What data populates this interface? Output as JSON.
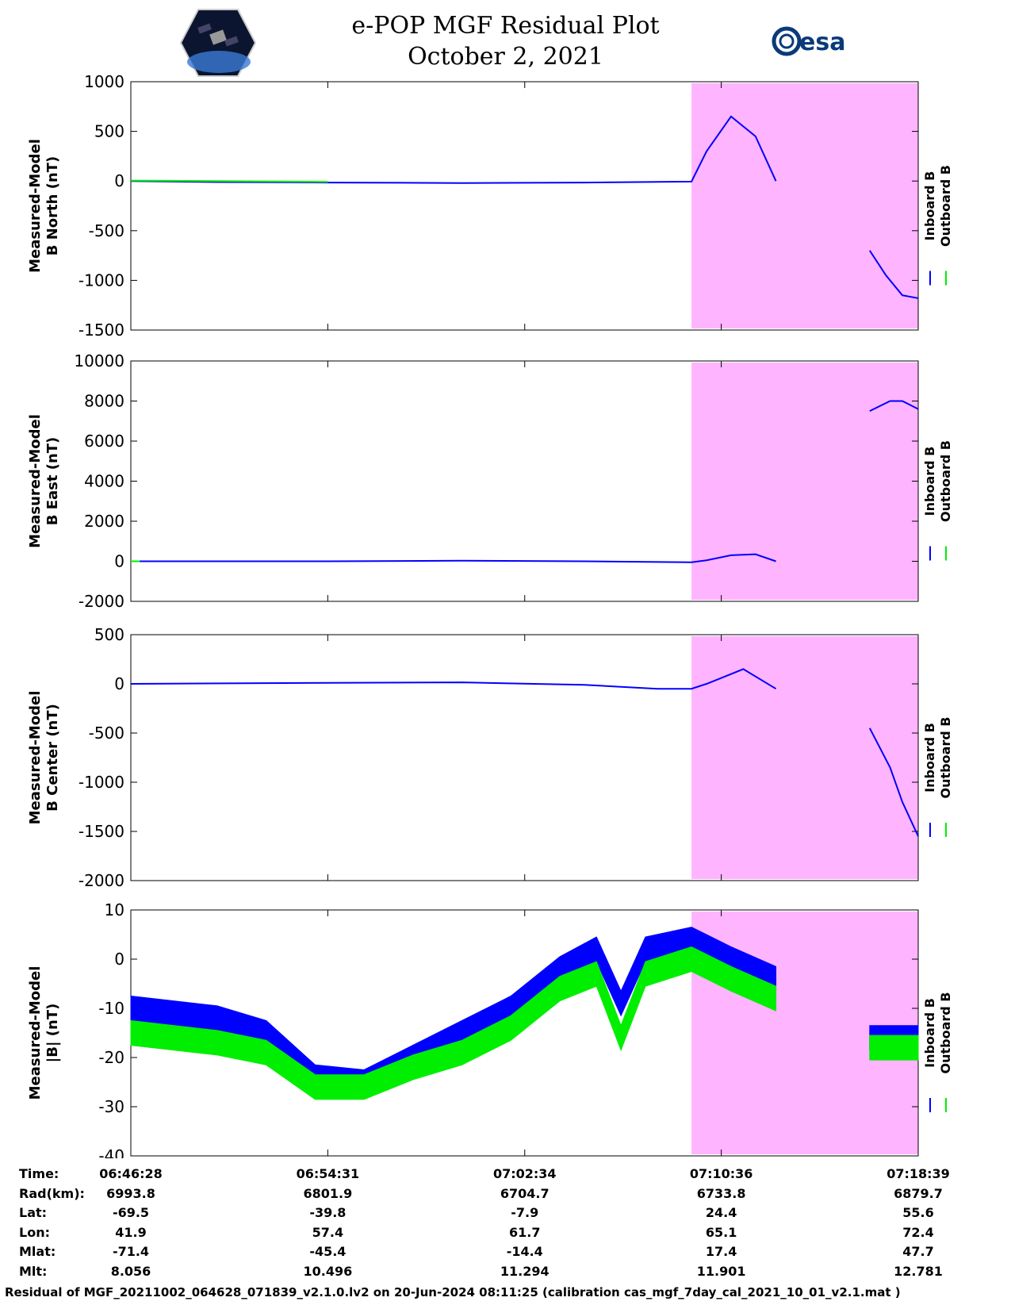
{
  "header": {
    "title_line1": "e-POP MGF Residual Plot",
    "title_line2": "October 2, 2021",
    "left_logo": "cassiope-logo",
    "right_logo_text": "esa"
  },
  "colors": {
    "inboard": "#0000ff",
    "outboard": "#00ee00",
    "highlight": "#ffb4ff"
  },
  "legend": {
    "inboard": "Inboard B",
    "outboard": "Outboard B"
  },
  "chart_data": [
    {
      "type": "line",
      "ylabel_line1": "Measured-Model",
      "ylabel_line2": "B North (nT)",
      "ylim": [
        -1500,
        1000
      ],
      "yticks": [
        -1500,
        -1000,
        -500,
        0,
        500,
        1000
      ],
      "shaded_span": [
        "07:09:23",
        "07:18:39"
      ],
      "series": [
        {
          "name": "Inboard B",
          "segments": [
            [
              [
                "06:46:28",
                0
              ],
              [
                "06:50:00",
                -10
              ],
              [
                "06:54:31",
                -15
              ],
              [
                "07:00:00",
                -20
              ],
              [
                "07:05:00",
                -15
              ],
              [
                "07:09:23",
                -5
              ],
              [
                "07:10:00",
                300
              ],
              [
                "07:11:00",
                650
              ],
              [
                "07:12:00",
                450
              ],
              [
                "07:12:50",
                0
              ]
            ],
            [
              [
                "07:16:40",
                -700
              ],
              [
                "07:17:20",
                -950
              ],
              [
                "07:18:00",
                -1150
              ],
              [
                "07:18:39",
                -1180
              ]
            ]
          ]
        },
        {
          "name": "Outboard B",
          "segments": [
            [
              [
                "06:46:28",
                5
              ],
              [
                "06:50:00",
                0
              ],
              [
                "06:54:31",
                -8
              ]
            ]
          ]
        }
      ]
    },
    {
      "type": "line",
      "ylabel_line1": "Measured-Model",
      "ylabel_line2": "B East (nT)",
      "ylim": [
        -2000,
        10000
      ],
      "yticks": [
        -2000,
        0,
        2000,
        4000,
        6000,
        8000,
        10000
      ],
      "shaded_span": [
        "07:09:23",
        "07:18:39"
      ],
      "series": [
        {
          "name": "Inboard B",
          "segments": [
            [
              [
                "06:46:28",
                0
              ],
              [
                "06:54:31",
                0
              ],
              [
                "07:00:00",
                30
              ],
              [
                "07:05:00",
                0
              ],
              [
                "07:09:23",
                -50
              ],
              [
                "07:10:00",
                50
              ],
              [
                "07:11:00",
                300
              ],
              [
                "07:12:00",
                350
              ],
              [
                "07:12:50",
                0
              ]
            ],
            [
              [
                "07:16:40",
                7500
              ],
              [
                "07:17:30",
                8000
              ],
              [
                "07:18:00",
                8000
              ],
              [
                "07:18:39",
                7600
              ]
            ]
          ]
        },
        {
          "name": "Outboard B",
          "segments": [
            [
              [
                "06:46:28",
                0
              ],
              [
                "06:46:50",
                0
              ]
            ]
          ]
        }
      ]
    },
    {
      "type": "line",
      "ylabel_line1": "Measured-Model",
      "ylabel_line2": "B Center (nT)",
      "ylim": [
        -2000,
        500
      ],
      "yticks": [
        -2000,
        -1500,
        -1000,
        -500,
        0,
        500
      ],
      "shaded_span": [
        "07:09:23",
        "07:18:39"
      ],
      "series": [
        {
          "name": "Inboard B",
          "segments": [
            [
              [
                "06:46:28",
                0
              ],
              [
                "06:54:31",
                10
              ],
              [
                "07:00:00",
                15
              ],
              [
                "07:05:00",
                -10
              ],
              [
                "07:08:00",
                -50
              ],
              [
                "07:09:23",
                -50
              ],
              [
                "07:10:00",
                0
              ],
              [
                "07:11:30",
                150
              ],
              [
                "07:12:50",
                -50
              ]
            ],
            [
              [
                "07:16:40",
                -450
              ],
              [
                "07:17:30",
                -850
              ],
              [
                "07:18:00",
                -1200
              ],
              [
                "07:18:39",
                -1550
              ]
            ]
          ]
        }
      ]
    },
    {
      "type": "line",
      "ylabel_line1": "Measured-Model",
      "ylabel_line2": "|B| (nT)",
      "ylim": [
        -40,
        10
      ],
      "yticks": [
        -40,
        -30,
        -20,
        -10,
        0,
        10
      ],
      "shaded_span": [
        "07:09:23",
        "07:18:39"
      ],
      "series": [
        {
          "name": "Inboard B",
          "band": true,
          "segments": [
            [
              [
                "06:46:28",
                -10
              ],
              [
                "06:50:00",
                -12
              ],
              [
                "06:52:00",
                -15
              ],
              [
                "06:54:00",
                -24
              ],
              [
                "06:56:00",
                -25
              ],
              [
                "06:58:00",
                -20
              ],
              [
                "07:00:00",
                -15
              ],
              [
                "07:02:00",
                -10
              ],
              [
                "07:04:00",
                -2
              ],
              [
                "07:05:30",
                2
              ],
              [
                "07:06:30",
                -9
              ],
              [
                "07:07:30",
                2
              ],
              [
                "07:09:23",
                4
              ],
              [
                "07:11:00",
                0
              ],
              [
                "07:12:50",
                -4
              ]
            ],
            [
              [
                "07:16:40",
                -16
              ],
              [
                "07:18:39",
                -16
              ]
            ]
          ]
        },
        {
          "name": "Outboard B",
          "band": true,
          "segments": [
            [
              [
                "06:46:28",
                -15
              ],
              [
                "06:50:00",
                -17
              ],
              [
                "06:52:00",
                -19
              ],
              [
                "06:54:00",
                -26
              ],
              [
                "06:56:00",
                -26
              ],
              [
                "06:58:00",
                -22
              ],
              [
                "07:00:00",
                -19
              ],
              [
                "07:02:00",
                -14
              ],
              [
                "07:04:00",
                -6
              ],
              [
                "07:05:30",
                -3
              ],
              [
                "07:06:30",
                -16
              ],
              [
                "07:07:30",
                -3
              ],
              [
                "07:09:23",
                0
              ],
              [
                "07:11:00",
                -4
              ],
              [
                "07:12:50",
                -8
              ]
            ],
            [
              [
                "07:16:40",
                -18
              ],
              [
                "07:18:39",
                -18
              ]
            ]
          ]
        }
      ]
    }
  ],
  "info_table": {
    "labels": [
      "Time:",
      "Rad(km):",
      "Lat:",
      "Lon:",
      "Mlat:",
      "Mlt:"
    ],
    "columns": [
      [
        "06:46:28",
        "6993.8",
        "-69.5",
        "41.9",
        "-71.4",
        "8.056"
      ],
      [
        "06:54:31",
        "6801.9",
        "-39.8",
        "57.4",
        "-45.4",
        "10.496"
      ],
      [
        "07:02:34",
        "6704.7",
        "-7.9",
        "61.7",
        "-14.4",
        "11.294"
      ],
      [
        "07:10:36",
        "6733.8",
        "24.4",
        "65.1",
        "17.4",
        "11.901"
      ],
      [
        "07:18:39",
        "6879.7",
        "55.6",
        "72.4",
        "47.7",
        "12.781"
      ]
    ]
  },
  "footer": "Residual of MGF_20211002_064628_071839_v2.1.0.lv2 on 20-Jun-2024 08:11:25 (calibration cas_mgf_7day_cal_2021_10_01_v2.1.mat )"
}
